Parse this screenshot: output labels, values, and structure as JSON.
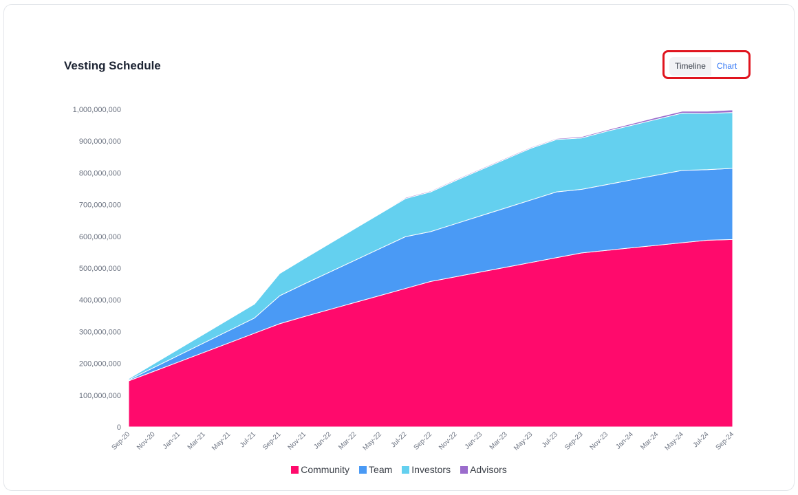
{
  "header": {
    "title": "Vesting Schedule",
    "toggle": {
      "timeline_label": "Timeline",
      "chart_label": "Chart",
      "active": "chart"
    }
  },
  "chart_data": {
    "type": "area",
    "stacked": true,
    "title": "Vesting Schedule",
    "x": [
      "Sep-20",
      "Nov-20",
      "Jan-21",
      "Mar-21",
      "May-21",
      "Jul-21",
      "Sep-21",
      "Nov-21",
      "Jan-22",
      "Mar-22",
      "May-22",
      "Jul-22",
      "Sep-22",
      "Nov-22",
      "Jan-23",
      "Mar-23",
      "May-23",
      "Jul-23",
      "Sep-23",
      "Nov-23",
      "Jan-24",
      "Mar-24",
      "May-24",
      "Jul-24",
      "Sep-24"
    ],
    "yticks": [
      "0",
      "100,000,000",
      "200,000,000",
      "300,000,000",
      "400,000,000",
      "500,000,000",
      "600,000,000",
      "700,000,000",
      "800,000,000",
      "900,000,000",
      "1,000,000,000"
    ],
    "ylim": [
      0,
      1000000000
    ],
    "grid": false,
    "legend_position": "bottom",
    "series": [
      {
        "name": "Community",
        "color": "#ff0a6c",
        "values": [
          145000000,
          175000000,
          205000000,
          235000000,
          265000000,
          295000000,
          325000000,
          348000000,
          370000000,
          392000000,
          414000000,
          436000000,
          458000000,
          473000000,
          488000000,
          503000000,
          518000000,
          533000000,
          548000000,
          556000000,
          564000000,
          572000000,
          580000000,
          588000000,
          590000000
        ]
      },
      {
        "name": "Team",
        "color": "#4a9af5",
        "values": [
          3000000,
          12000000,
          21000000,
          30000000,
          39000000,
          48000000,
          88000000,
          103000000,
          118000000,
          133000000,
          148000000,
          163000000,
          157000000,
          167000000,
          177000000,
          187000000,
          197000000,
          207000000,
          200000000,
          207000000,
          214000000,
          221000000,
          228000000,
          222000000,
          224000000
        ]
      },
      {
        "name": "Investors",
        "color": "#64d0ef",
        "values": [
          4000000,
          12000000,
          20000000,
          28000000,
          36000000,
          44000000,
          70000000,
          80000000,
          90000000,
          100000000,
          110000000,
          120000000,
          125000000,
          136000000,
          145000000,
          154000000,
          163000000,
          165000000,
          162000000,
          168000000,
          172000000,
          176000000,
          180000000,
          177000000,
          176000000
        ]
      },
      {
        "name": "Advisors",
        "color": "#9b6ccc",
        "values": [
          1000000,
          1000000,
          1000000,
          1000000,
          1000000,
          1000000,
          2000000,
          2000000,
          2000000,
          2000000,
          2000000,
          3000000,
          3000000,
          3000000,
          3000000,
          3000000,
          3000000,
          3000000,
          4000000,
          4000000,
          5000000,
          6000000,
          6000000,
          7000000,
          8000000
        ]
      }
    ]
  }
}
